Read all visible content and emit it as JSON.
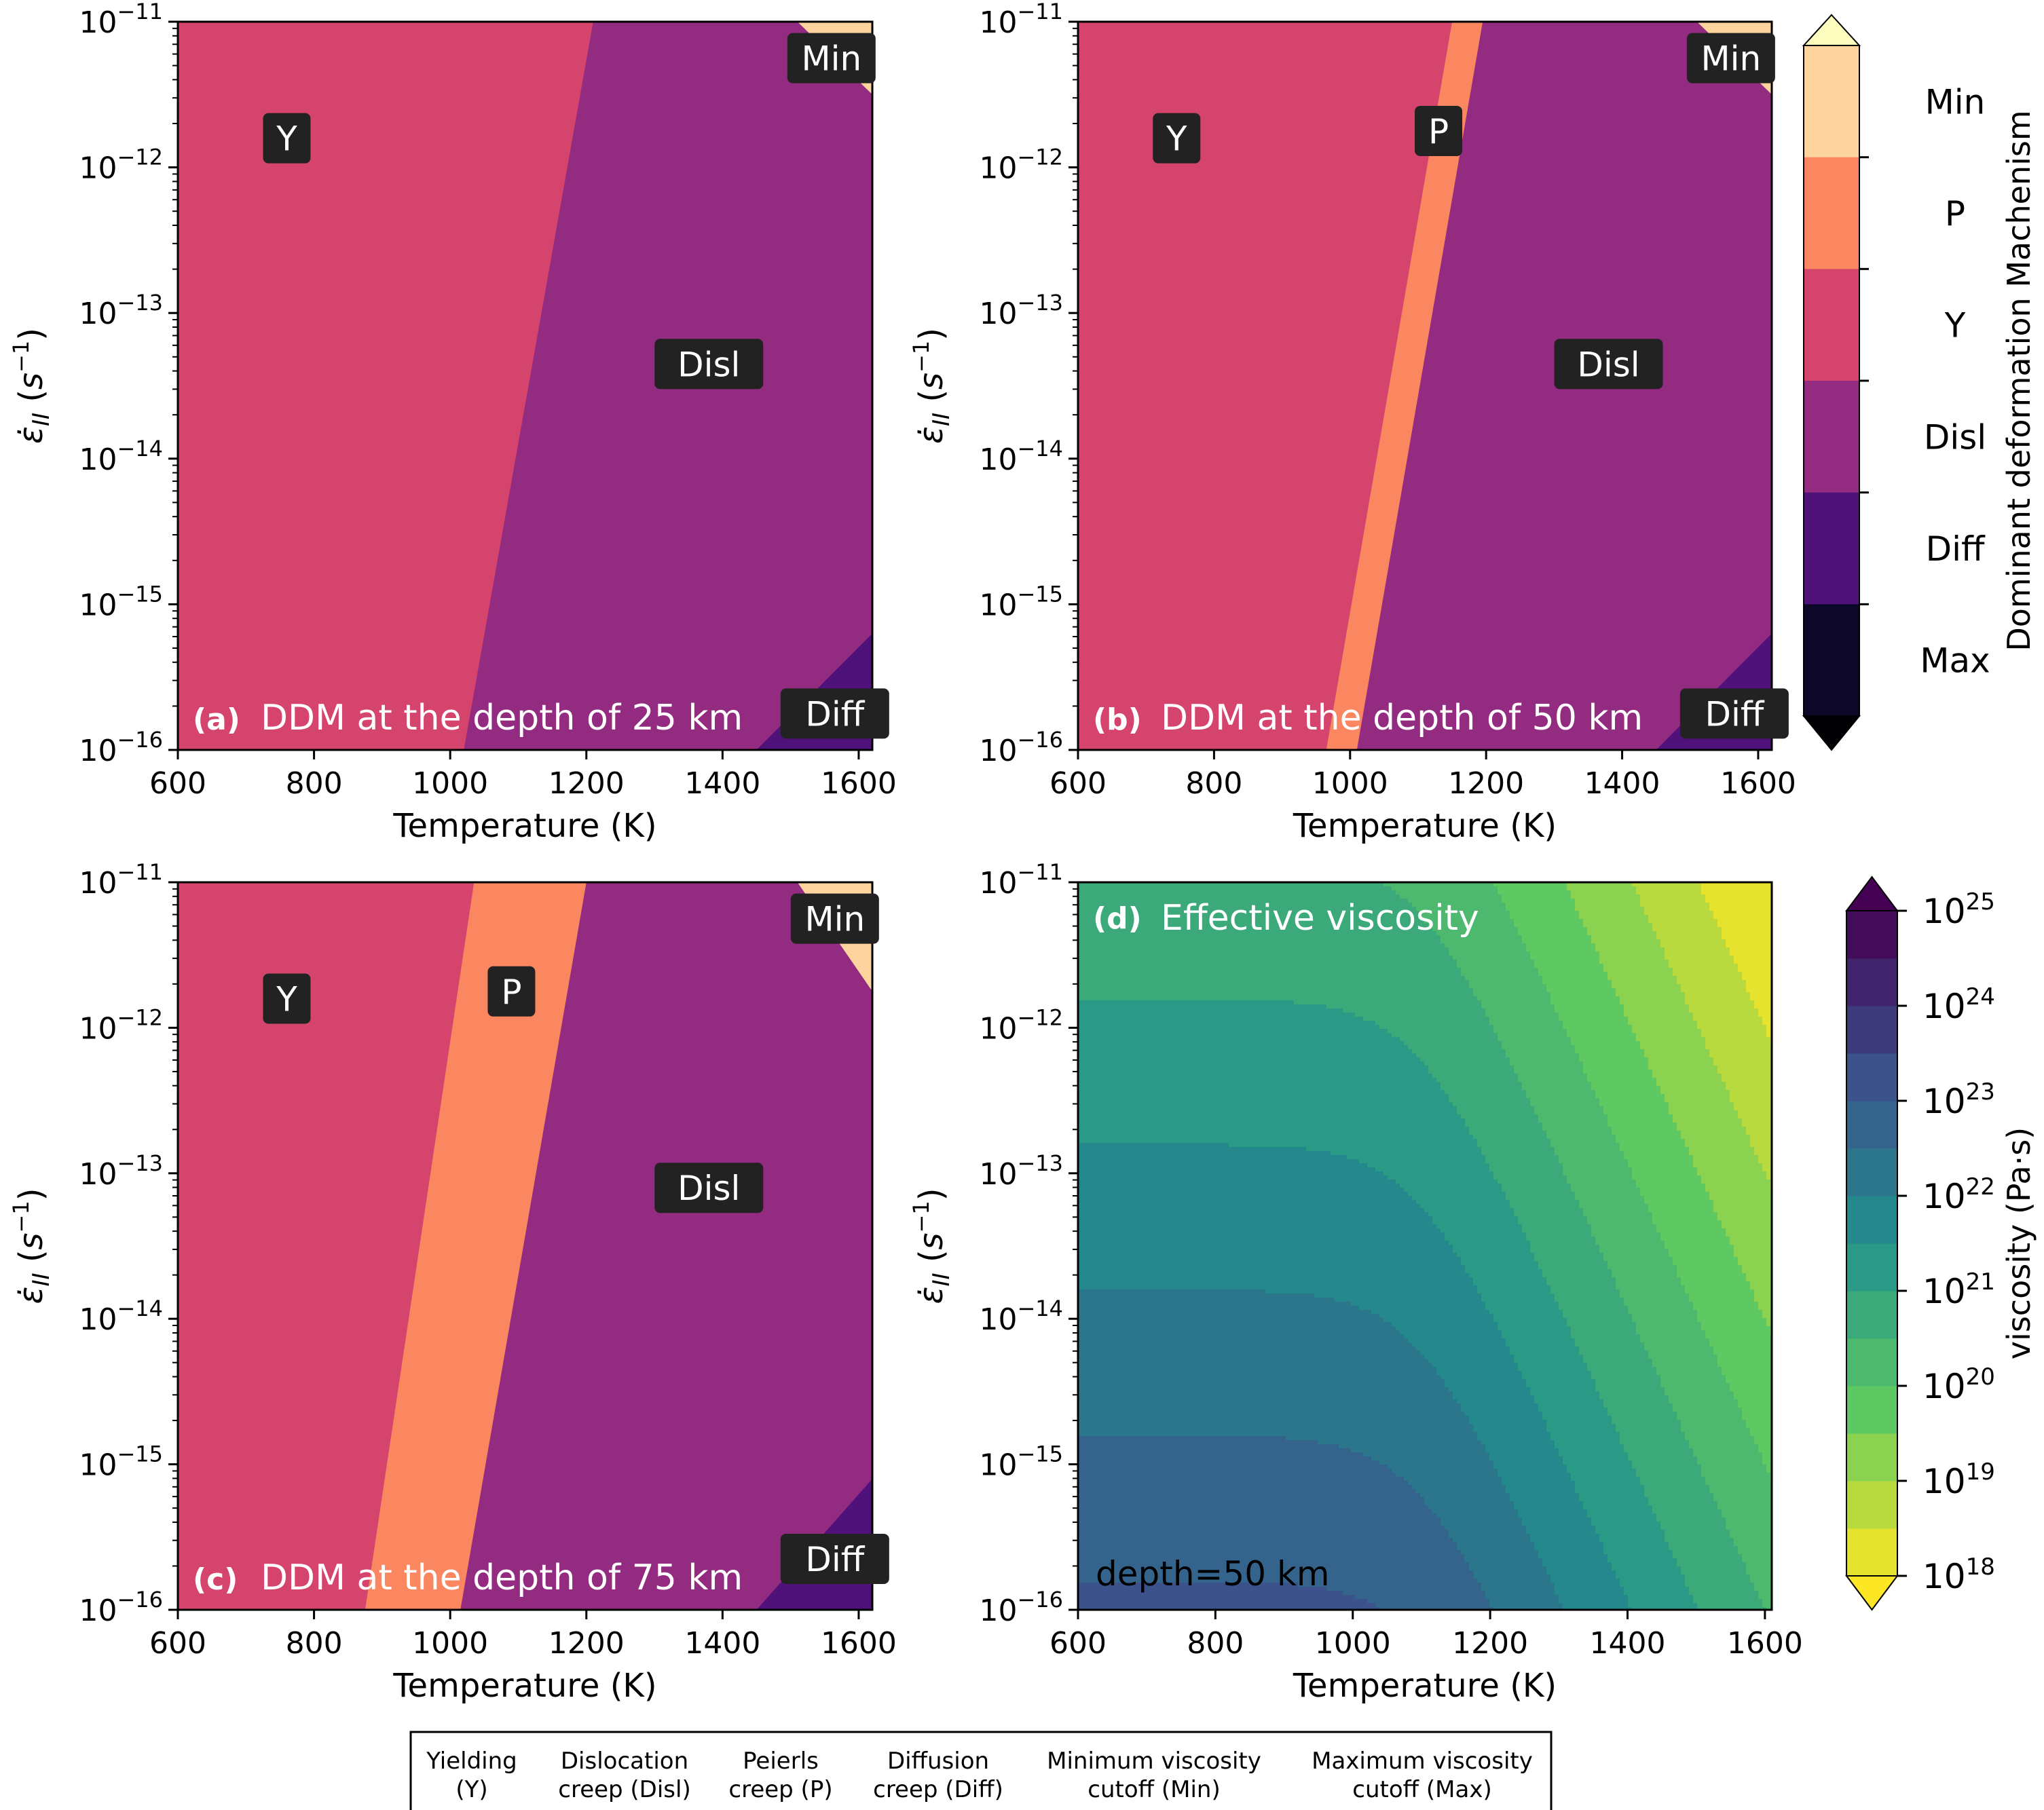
{
  "chart_data": [
    {
      "panel": "a",
      "type": "heatmap",
      "label": "(a)",
      "title": "DDM at the depth of 25 km",
      "xlabel": "Temperature (K)",
      "ylabel": "ε̇_II (s⁻¹)",
      "xlim": [
        600,
        1620
      ],
      "ylim": [
        1e-16,
        1e-11
      ],
      "yscale": "log",
      "xticks": [
        600,
        800,
        1000,
        1200,
        1400,
        1600
      ],
      "yticks": [
        -16,
        -15,
        -14,
        -13,
        -12,
        -11
      ],
      "boundaries": {
        "Y_Disl": [
          [
            1020,
            -16
          ],
          [
            1210,
            -11
          ]
        ],
        "Min": [
          [
            1510,
            -11
          ],
          [
            1620,
            -11.5
          ]
        ],
        "Diff": [
          [
            1450,
            -16
          ],
          [
            1620,
            -15.2
          ]
        ]
      },
      "regions": [
        {
          "label": "Y",
          "x": 760,
          "y": -11.8
        },
        {
          "label": "Disl",
          "x": 1380,
          "y": -13.35
        },
        {
          "label": "Min",
          "x": 1560,
          "y": -11.25
        },
        {
          "label": "Diff",
          "x": 1565,
          "y": -15.75
        }
      ]
    },
    {
      "panel": "b",
      "type": "heatmap",
      "label": "(b)",
      "title": "DDM at the depth of 50 km",
      "xlabel": "Temperature (K)",
      "ylabel": "ε̇_II (s⁻¹)",
      "xlim": [
        600,
        1620
      ],
      "ylim": [
        1e-16,
        1e-11
      ],
      "yscale": "log",
      "xticks": [
        600,
        800,
        1000,
        1200,
        1400,
        1600
      ],
      "yticks": [
        -16,
        -15,
        -14,
        -13,
        -12,
        -11
      ],
      "boundaries": {
        "Y_P": [
          [
            965,
            -16
          ],
          [
            1150,
            -11
          ]
        ],
        "P_Disl": [
          [
            1010,
            -16
          ],
          [
            1195,
            -11
          ]
        ],
        "Min": [
          [
            1510,
            -11
          ],
          [
            1620,
            -11.5
          ]
        ],
        "Diff": [
          [
            1450,
            -16
          ],
          [
            1620,
            -15.2
          ]
        ]
      },
      "regions": [
        {
          "label": "Y",
          "x": 745,
          "y": -11.8
        },
        {
          "label": "P",
          "x": 1130,
          "y": -11.75
        },
        {
          "label": "Disl",
          "x": 1380,
          "y": -13.35
        },
        {
          "label": "Min",
          "x": 1560,
          "y": -11.25
        },
        {
          "label": "Diff",
          "x": 1565,
          "y": -15.75
        }
      ]
    },
    {
      "panel": "c",
      "type": "heatmap",
      "label": "(c)",
      "title": "DDM at the depth of 75 km",
      "xlabel": "Temperature (K)",
      "ylabel": "ε̇_II (s⁻¹)",
      "xlim": [
        600,
        1620
      ],
      "ylim": [
        1e-16,
        1e-11
      ],
      "yscale": "log",
      "xticks": [
        600,
        800,
        1000,
        1200,
        1400,
        1600
      ],
      "yticks": [
        -16,
        -15,
        -14,
        -13,
        -12,
        -11
      ],
      "boundaries": {
        "Y_P": [
          [
            875,
            -16
          ],
          [
            1035,
            -11
          ]
        ],
        "P_Disl": [
          [
            1015,
            -16
          ],
          [
            1200,
            -11
          ]
        ],
        "Min": [
          [
            1510,
            -11
          ],
          [
            1620,
            -11.75
          ]
        ],
        "Diff": [
          [
            1450,
            -16
          ],
          [
            1620,
            -15.1
          ]
        ]
      },
      "regions": [
        {
          "label": "Y",
          "x": 760,
          "y": -11.8
        },
        {
          "label": "P",
          "x": 1090,
          "y": -11.75
        },
        {
          "label": "Disl",
          "x": 1380,
          "y": -13.1
        },
        {
          "label": "Min",
          "x": 1565,
          "y": -11.25
        },
        {
          "label": "Diff",
          "x": 1565,
          "y": -15.65
        }
      ]
    },
    {
      "panel": "d",
      "type": "heatmap",
      "label": "(d)",
      "title": "Effective viscosity",
      "annotation": "depth=50 km",
      "xlabel": "Temperature (K)",
      "ylabel": "ε̇_II (s⁻¹)",
      "xlim": [
        600,
        1610
      ],
      "ylim": [
        1e-16,
        1e-11
      ],
      "yscale": "log",
      "xticks": [
        600,
        800,
        1000,
        1200,
        1400,
        1600
      ],
      "yticks": [
        -16,
        -15,
        -14,
        -13,
        -12,
        -11
      ],
      "zscale": "log",
      "zlim": [
        1e+18,
        1e+25
      ],
      "contour_levels_log10": [
        18.0,
        18.5,
        19.0,
        19.5,
        20.0,
        20.5,
        21.0,
        21.5,
        22.0,
        22.5,
        23.0,
        23.5,
        24.0,
        24.5,
        25.0
      ]
    }
  ],
  "ddm_colorbar": {
    "label": "Dominant deformation Machenism",
    "categories": [
      "Min",
      "P",
      "Y",
      "Disl",
      "Diff",
      "Max"
    ],
    "colors": [
      "#fdd49e",
      "#fb8761",
      "#d5446d",
      "#932b80",
      "#4f127b",
      "#0d0829"
    ],
    "extend_top_color": "#fcfdbf",
    "extend_bottom_color": "#000004"
  },
  "viscosity_colorbar": {
    "label": "viscosity (Pa·s)",
    "ticks": [
      "18",
      "19",
      "20",
      "21",
      "22",
      "23",
      "24",
      "25"
    ],
    "tick_base": "10",
    "extend_top_color": "#440154",
    "extend_bottom_color": "#fde725"
  },
  "legend": [
    {
      "line1": "Yielding",
      "line2": "(Y)"
    },
    {
      "line1": "Dislocation",
      "line2": "creep (Disl)"
    },
    {
      "line1": "Peierls",
      "line2": "creep (P)"
    },
    {
      "line1": "Diffusion",
      "line2": "creep (Diff)"
    },
    {
      "line1": "Minimum viscosity",
      "line2": "cutoff (Min)"
    },
    {
      "line1": "Maximum viscosity",
      "line2": "cutoff (Max)"
    }
  ]
}
